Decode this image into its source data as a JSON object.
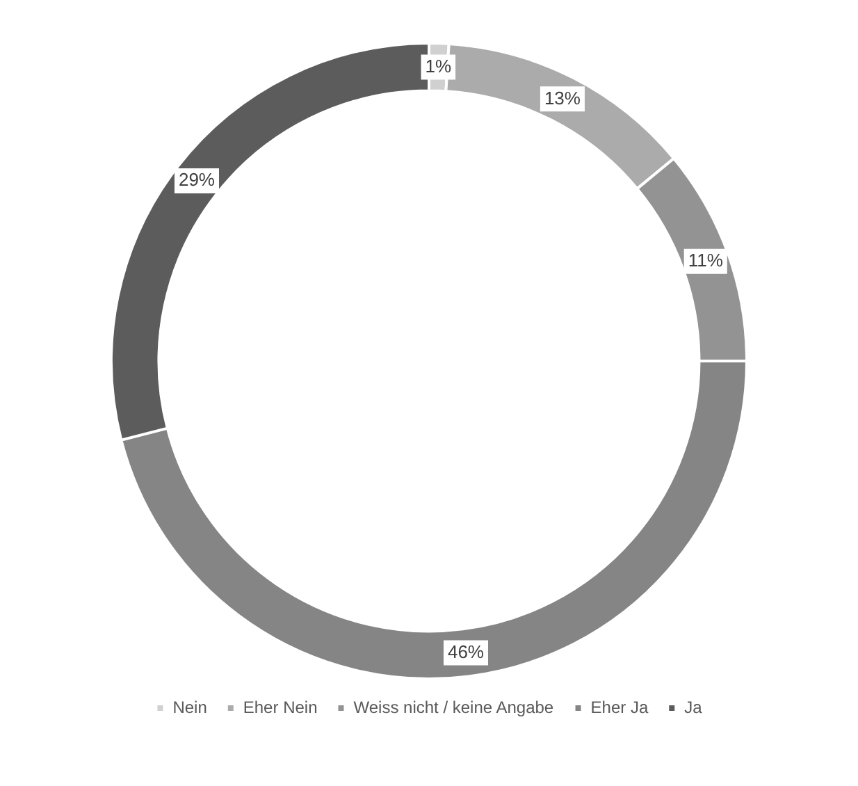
{
  "chart_data": {
    "type": "donut",
    "categories": [
      "Nein",
      "Eher Nein",
      "Weiss nicht / keine Angabe",
      "Eher Ja",
      "Ja"
    ],
    "values": [
      1,
      13,
      11,
      46,
      29
    ],
    "colors": [
      "#d0d0d0",
      "#ababab",
      "#939393",
      "#858585",
      "#5c5c5c"
    ],
    "value_labels": [
      "1%",
      "13%",
      "11%",
      "46%",
      "29%"
    ],
    "legend": "bottom"
  }
}
